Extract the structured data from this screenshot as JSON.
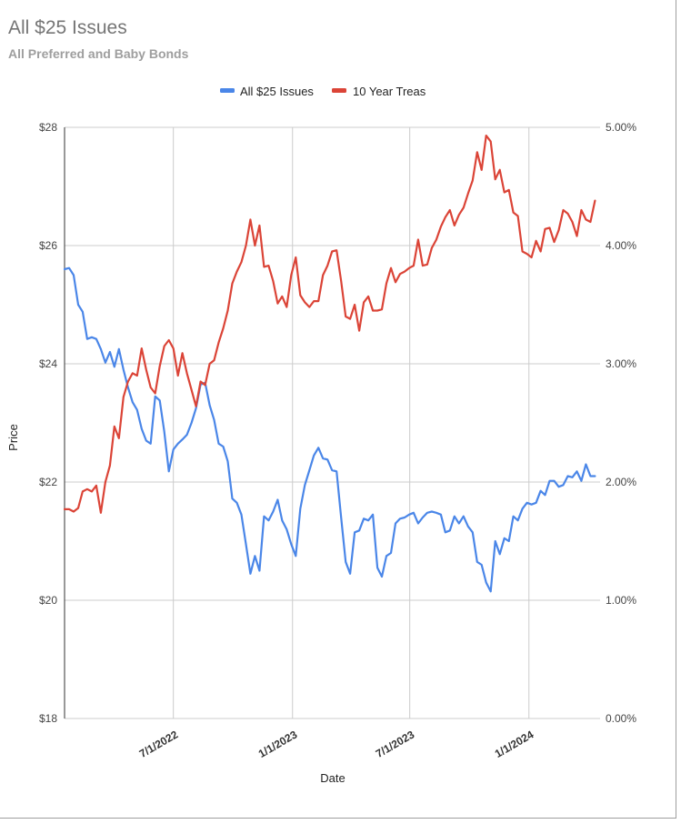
{
  "chart_data": {
    "type": "line",
    "title": "All $25 Issues",
    "subtitle": "All Preferred and Baby Bonds",
    "xlabel": "Date",
    "ylabel": "Price",
    "y2label": "",
    "legend_position": "top",
    "grid": true,
    "x_ticks": [
      "7/1/2022",
      "1/1/2023",
      "7/1/2023",
      "1/1/2024"
    ],
    "y_ticks": [
      "$18",
      "$20",
      "$22",
      "$24",
      "$26",
      "$28"
    ],
    "y2_ticks": [
      "0.00%",
      "1.00%",
      "2.00%",
      "3.00%",
      "4.00%",
      "5.00%"
    ],
    "ylim": [
      18,
      28
    ],
    "y2lim": [
      0,
      5
    ],
    "series": [
      {
        "name": "All $25 Issues",
        "color": "#4a86e8",
        "axis": "left",
        "points": [
          [
            "2022-01-14",
            25.6
          ],
          [
            "2022-01-21",
            25.62
          ],
          [
            "2022-01-28",
            25.5
          ],
          [
            "2022-02-04",
            25.0
          ],
          [
            "2022-02-11",
            24.88
          ],
          [
            "2022-02-18",
            24.42
          ],
          [
            "2022-02-25",
            24.45
          ],
          [
            "2022-03-04",
            24.42
          ],
          [
            "2022-03-11",
            24.25
          ],
          [
            "2022-03-18",
            24.02
          ],
          [
            "2022-03-25",
            24.2
          ],
          [
            "2022-04-01",
            23.95
          ],
          [
            "2022-04-08",
            24.25
          ],
          [
            "2022-04-15",
            23.9
          ],
          [
            "2022-04-22",
            23.6
          ],
          [
            "2022-04-29",
            23.35
          ],
          [
            "2022-05-06",
            23.22
          ],
          [
            "2022-05-13",
            22.9
          ],
          [
            "2022-05-20",
            22.7
          ],
          [
            "2022-05-27",
            22.65
          ],
          [
            "2022-06-03",
            23.45
          ],
          [
            "2022-06-10",
            23.38
          ],
          [
            "2022-06-17",
            22.85
          ],
          [
            "2022-06-24",
            22.18
          ],
          [
            "2022-07-01",
            22.55
          ],
          [
            "2022-07-08",
            22.65
          ],
          [
            "2022-07-15",
            22.72
          ],
          [
            "2022-07-22",
            22.8
          ],
          [
            "2022-07-29",
            23.0
          ],
          [
            "2022-08-05",
            23.25
          ],
          [
            "2022-08-12",
            23.65
          ],
          [
            "2022-08-19",
            23.68
          ],
          [
            "2022-08-26",
            23.3
          ],
          [
            "2022-09-02",
            23.05
          ],
          [
            "2022-09-09",
            22.65
          ],
          [
            "2022-09-16",
            22.6
          ],
          [
            "2022-09-23",
            22.35
          ],
          [
            "2022-09-30",
            21.72
          ],
          [
            "2022-10-07",
            21.65
          ],
          [
            "2022-10-14",
            21.45
          ],
          [
            "2022-10-21",
            20.95
          ],
          [
            "2022-10-28",
            20.45
          ],
          [
            "2022-11-04",
            20.75
          ],
          [
            "2022-11-11",
            20.5
          ],
          [
            "2022-11-18",
            21.42
          ],
          [
            "2022-11-25",
            21.35
          ],
          [
            "2022-12-02",
            21.5
          ],
          [
            "2022-12-09",
            21.7
          ],
          [
            "2022-12-16",
            21.35
          ],
          [
            "2022-12-23",
            21.2
          ],
          [
            "2022-12-30",
            20.95
          ],
          [
            "2023-01-06",
            20.75
          ],
          [
            "2023-01-13",
            21.55
          ],
          [
            "2023-01-20",
            21.95
          ],
          [
            "2023-01-27",
            22.2
          ],
          [
            "2023-02-03",
            22.45
          ],
          [
            "2023-02-10",
            22.58
          ],
          [
            "2023-02-17",
            22.4
          ],
          [
            "2023-02-24",
            22.38
          ],
          [
            "2023-03-03",
            22.2
          ],
          [
            "2023-03-10",
            22.18
          ],
          [
            "2023-03-17",
            21.4
          ],
          [
            "2023-03-24",
            20.65
          ],
          [
            "2023-03-31",
            20.45
          ],
          [
            "2023-04-07",
            21.15
          ],
          [
            "2023-04-14",
            21.18
          ],
          [
            "2023-04-21",
            21.38
          ],
          [
            "2023-04-28",
            21.35
          ],
          [
            "2023-05-05",
            21.45
          ],
          [
            "2023-05-12",
            20.55
          ],
          [
            "2023-05-19",
            20.4
          ],
          [
            "2023-05-26",
            20.75
          ],
          [
            "2023-06-02",
            20.8
          ],
          [
            "2023-06-09",
            21.3
          ],
          [
            "2023-06-16",
            21.38
          ],
          [
            "2023-06-23",
            21.4
          ],
          [
            "2023-06-30",
            21.45
          ],
          [
            "2023-07-07",
            21.48
          ],
          [
            "2023-07-14",
            21.3
          ],
          [
            "2023-07-21",
            21.4
          ],
          [
            "2023-07-28",
            21.48
          ],
          [
            "2023-08-04",
            21.5
          ],
          [
            "2023-08-11",
            21.48
          ],
          [
            "2023-08-18",
            21.45
          ],
          [
            "2023-08-25",
            21.15
          ],
          [
            "2023-09-01",
            21.18
          ],
          [
            "2023-09-08",
            21.42
          ],
          [
            "2023-09-15",
            21.3
          ],
          [
            "2023-09-22",
            21.42
          ],
          [
            "2023-09-29",
            21.25
          ],
          [
            "2023-10-06",
            21.15
          ],
          [
            "2023-10-13",
            20.65
          ],
          [
            "2023-10-20",
            20.6
          ],
          [
            "2023-10-27",
            20.3
          ],
          [
            "2023-11-03",
            20.15
          ],
          [
            "2023-11-10",
            21.0
          ],
          [
            "2023-11-17",
            20.78
          ],
          [
            "2023-11-24",
            21.05
          ],
          [
            "2023-12-01",
            21.0
          ],
          [
            "2023-12-08",
            21.42
          ],
          [
            "2023-12-15",
            21.35
          ],
          [
            "2023-12-22",
            21.55
          ],
          [
            "2023-12-29",
            21.65
          ],
          [
            "2024-01-05",
            21.62
          ],
          [
            "2024-01-12",
            21.65
          ],
          [
            "2024-01-19",
            21.85
          ],
          [
            "2024-01-26",
            21.78
          ],
          [
            "2024-02-02",
            22.02
          ],
          [
            "2024-02-09",
            22.02
          ],
          [
            "2024-02-16",
            21.92
          ],
          [
            "2024-02-23",
            21.95
          ],
          [
            "2024-03-01",
            22.1
          ],
          [
            "2024-03-08",
            22.08
          ],
          [
            "2024-03-15",
            22.18
          ],
          [
            "2024-03-22",
            22.02
          ],
          [
            "2024-03-29",
            22.3
          ],
          [
            "2024-04-05",
            22.1
          ],
          [
            "2024-04-12",
            22.1
          ]
        ]
      },
      {
        "name": "10 Year Treas",
        "color": "#db4437",
        "axis": "right",
        "points": [
          [
            "2022-01-14",
            1.77
          ],
          [
            "2022-01-21",
            1.77
          ],
          [
            "2022-01-28",
            1.75
          ],
          [
            "2022-02-04",
            1.78
          ],
          [
            "2022-02-11",
            1.92
          ],
          [
            "2022-02-18",
            1.94
          ],
          [
            "2022-02-25",
            1.92
          ],
          [
            "2022-03-04",
            1.97
          ],
          [
            "2022-03-11",
            1.74
          ],
          [
            "2022-03-18",
            2.0
          ],
          [
            "2022-03-25",
            2.14
          ],
          [
            "2022-04-01",
            2.47
          ],
          [
            "2022-04-08",
            2.37
          ],
          [
            "2022-04-15",
            2.72
          ],
          [
            "2022-04-22",
            2.85
          ],
          [
            "2022-04-29",
            2.92
          ],
          [
            "2022-05-06",
            2.9
          ],
          [
            "2022-05-13",
            3.13
          ],
          [
            "2022-05-20",
            2.95
          ],
          [
            "2022-05-27",
            2.8
          ],
          [
            "2022-06-03",
            2.75
          ],
          [
            "2022-06-10",
            2.98
          ],
          [
            "2022-06-17",
            3.15
          ],
          [
            "2022-06-24",
            3.2
          ],
          [
            "2022-07-01",
            3.13
          ],
          [
            "2022-07-08",
            2.9
          ],
          [
            "2022-07-15",
            3.09
          ],
          [
            "2022-07-22",
            2.92
          ],
          [
            "2022-07-29",
            2.78
          ],
          [
            "2022-08-05",
            2.64
          ],
          [
            "2022-08-12",
            2.85
          ],
          [
            "2022-08-19",
            2.82
          ],
          [
            "2022-08-26",
            3.0
          ],
          [
            "2022-09-02",
            3.03
          ],
          [
            "2022-09-09",
            3.18
          ],
          [
            "2022-09-16",
            3.3
          ],
          [
            "2022-09-23",
            3.45
          ],
          [
            "2022-09-30",
            3.68
          ],
          [
            "2022-10-07",
            3.78
          ],
          [
            "2022-10-14",
            3.86
          ],
          [
            "2022-10-21",
            4.0
          ],
          [
            "2022-10-28",
            4.22
          ],
          [
            "2022-11-04",
            4.0
          ],
          [
            "2022-11-11",
            4.17
          ],
          [
            "2022-11-18",
            3.82
          ],
          [
            "2022-11-25",
            3.83
          ],
          [
            "2022-12-02",
            3.7
          ],
          [
            "2022-12-09",
            3.51
          ],
          [
            "2022-12-16",
            3.57
          ],
          [
            "2022-12-23",
            3.48
          ],
          [
            "2022-12-30",
            3.75
          ],
          [
            "2023-01-06",
            3.9
          ],
          [
            "2023-01-13",
            3.58
          ],
          [
            "2023-01-20",
            3.52
          ],
          [
            "2023-01-27",
            3.48
          ],
          [
            "2023-02-03",
            3.53
          ],
          [
            "2023-02-10",
            3.53
          ],
          [
            "2023-02-17",
            3.75
          ],
          [
            "2023-02-24",
            3.83
          ],
          [
            "2023-03-03",
            3.95
          ],
          [
            "2023-03-10",
            3.96
          ],
          [
            "2023-03-17",
            3.7
          ],
          [
            "2023-03-24",
            3.4
          ],
          [
            "2023-03-31",
            3.38
          ],
          [
            "2023-04-07",
            3.5
          ],
          [
            "2023-04-14",
            3.28
          ],
          [
            "2023-04-21",
            3.52
          ],
          [
            "2023-04-28",
            3.57
          ],
          [
            "2023-05-05",
            3.45
          ],
          [
            "2023-05-12",
            3.45
          ],
          [
            "2023-05-19",
            3.46
          ],
          [
            "2023-05-26",
            3.68
          ],
          [
            "2023-06-02",
            3.81
          ],
          [
            "2023-06-09",
            3.69
          ],
          [
            "2023-06-16",
            3.76
          ],
          [
            "2023-06-23",
            3.78
          ],
          [
            "2023-06-30",
            3.81
          ],
          [
            "2023-07-07",
            3.83
          ],
          [
            "2023-07-14",
            4.05
          ],
          [
            "2023-07-21",
            3.83
          ],
          [
            "2023-07-28",
            3.84
          ],
          [
            "2023-08-04",
            3.98
          ],
          [
            "2023-08-11",
            4.05
          ],
          [
            "2023-08-18",
            4.16
          ],
          [
            "2023-08-25",
            4.24
          ],
          [
            "2023-09-01",
            4.3
          ],
          [
            "2023-09-08",
            4.17
          ],
          [
            "2023-09-15",
            4.26
          ],
          [
            "2023-09-22",
            4.32
          ],
          [
            "2023-09-29",
            4.44
          ],
          [
            "2023-10-06",
            4.55
          ],
          [
            "2023-10-13",
            4.79
          ],
          [
            "2023-10-20",
            4.64
          ],
          [
            "2023-10-27",
            4.93
          ],
          [
            "2023-11-03",
            4.88
          ],
          [
            "2023-11-10",
            4.56
          ],
          [
            "2023-11-17",
            4.64
          ],
          [
            "2023-11-24",
            4.45
          ],
          [
            "2023-12-01",
            4.47
          ],
          [
            "2023-12-08",
            4.28
          ],
          [
            "2023-12-15",
            4.25
          ],
          [
            "2023-12-22",
            3.95
          ],
          [
            "2023-12-29",
            3.93
          ],
          [
            "2024-01-05",
            3.9
          ],
          [
            "2024-01-12",
            4.04
          ],
          [
            "2024-01-19",
            3.95
          ],
          [
            "2024-01-26",
            4.14
          ],
          [
            "2024-02-02",
            4.15
          ],
          [
            "2024-02-09",
            4.03
          ],
          [
            "2024-02-16",
            4.13
          ],
          [
            "2024-02-23",
            4.3
          ],
          [
            "2024-03-01",
            4.27
          ],
          [
            "2024-03-08",
            4.2
          ],
          [
            "2024-03-15",
            4.08
          ],
          [
            "2024-03-22",
            4.3
          ],
          [
            "2024-03-29",
            4.22
          ],
          [
            "2024-04-05",
            4.2
          ],
          [
            "2024-04-12",
            4.38
          ]
        ]
      }
    ]
  }
}
